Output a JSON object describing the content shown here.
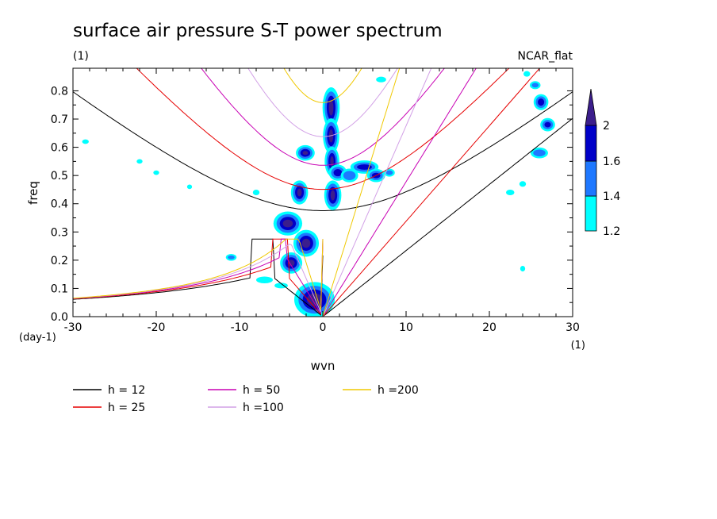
{
  "chart_data": {
    "type": "contour",
    "title": "surface air pressure S-T power spectrum",
    "subtitle": "(1)",
    "tag": "NCAR_flat",
    "xlabel": "wvn",
    "ylabel": "freq",
    "x_unit": "(1)",
    "y_unit": "(day-1)",
    "xlim": [
      -30,
      30
    ],
    "ylim": [
      0,
      0.88
    ],
    "x_ticks": [
      -30,
      -20,
      -10,
      0,
      10,
      20,
      30
    ],
    "x_tick_labels": [
      "-30",
      "-20",
      "-10",
      "0",
      "10",
      "20",
      "30"
    ],
    "y_ticks": [
      0,
      0.1,
      0.2,
      0.3,
      0.4,
      0.5,
      0.6,
      0.7,
      0.8
    ],
    "y_tick_labels": [
      "0.0",
      "0.1",
      "0.2",
      "0.3",
      "0.4",
      "0.5",
      "0.6",
      "0.7",
      "0.8"
    ],
    "colorbar": {
      "levels": [
        1.2,
        1.4,
        1.6,
        2
      ],
      "labels": [
        "1.2",
        "1.4",
        "1.6",
        "2"
      ],
      "colors": [
        "#00ffff",
        "#1e78ff",
        "#0000c8",
        "#3c1e8c"
      ]
    },
    "dispersion_curves": [
      {
        "h": 12,
        "label": "h = 12",
        "color": "#000000"
      },
      {
        "h": 25,
        "label": "h = 25",
        "color": "#e60000"
      },
      {
        "h": 50,
        "label": "h = 50",
        "color": "#c800b4"
      },
      {
        "h": 100,
        "label": "h =100",
        "color": "#d2a0e6"
      },
      {
        "h": 200,
        "label": "h =200",
        "color": "#f0c800"
      }
    ],
    "contour_blobs": [
      {
        "x": 1.0,
        "y": 0.74,
        "rx": 0.6,
        "ry": 0.06,
        "level": 4
      },
      {
        "x": 1.0,
        "y": 0.64,
        "rx": 0.55,
        "ry": 0.05,
        "level": 4
      },
      {
        "x": 1.1,
        "y": 0.55,
        "rx": 0.45,
        "ry": 0.04,
        "level": 4
      },
      {
        "x": 1.2,
        "y": 0.43,
        "rx": 0.6,
        "ry": 0.04,
        "level": 4
      },
      {
        "x": 1.8,
        "y": 0.51,
        "rx": 0.8,
        "ry": 0.02,
        "level": 3
      },
      {
        "x": -2.1,
        "y": 0.58,
        "rx": 0.7,
        "ry": 0.015,
        "level": 4
      },
      {
        "x": -2.8,
        "y": 0.44,
        "rx": 0.6,
        "ry": 0.03,
        "level": 4
      },
      {
        "x": -4.2,
        "y": 0.33,
        "rx": 1.3,
        "ry": 0.03,
        "level": 4
      },
      {
        "x": -2.0,
        "y": 0.26,
        "rx": 1.1,
        "ry": 0.035,
        "level": 4
      },
      {
        "x": -3.8,
        "y": 0.19,
        "rx": 0.9,
        "ry": 0.025,
        "level": 4
      },
      {
        "x": -1.0,
        "y": 0.06,
        "rx": 2.0,
        "ry": 0.05,
        "level": 4
      },
      {
        "x": 3.2,
        "y": 0.5,
        "rx": 0.9,
        "ry": 0.02,
        "level": 2
      },
      {
        "x": 5.0,
        "y": 0.53,
        "rx": 1.4,
        "ry": 0.015,
        "level": 3
      },
      {
        "x": 6.4,
        "y": 0.5,
        "rx": 0.8,
        "ry": 0.015,
        "level": 3
      },
      {
        "x": 8.0,
        "y": 0.51,
        "rx": 0.5,
        "ry": 0.01,
        "level": 2
      },
      {
        "x": 26.2,
        "y": 0.76,
        "rx": 0.6,
        "ry": 0.02,
        "level": 3
      },
      {
        "x": 27.0,
        "y": 0.68,
        "rx": 0.6,
        "ry": 0.015,
        "level": 3
      },
      {
        "x": 26.0,
        "y": 0.58,
        "rx": 0.9,
        "ry": 0.015,
        "level": 2
      },
      {
        "x": 25.5,
        "y": 0.82,
        "rx": 0.5,
        "ry": 0.01,
        "level": 2
      },
      {
        "x": 24.0,
        "y": 0.17,
        "rx": 0.3,
        "ry": 0.01,
        "level": 1
      },
      {
        "x": 22.5,
        "y": 0.44,
        "rx": 0.5,
        "ry": 0.01,
        "level": 1
      },
      {
        "x": -11.0,
        "y": 0.21,
        "rx": 0.5,
        "ry": 0.008,
        "level": 2
      },
      {
        "x": -28.5,
        "y": 0.62,
        "rx": 0.4,
        "ry": 0.008,
        "level": 1
      },
      {
        "x": -22.0,
        "y": 0.55,
        "rx": 0.35,
        "ry": 0.008,
        "level": 1
      },
      {
        "x": -20.0,
        "y": 0.51,
        "rx": 0.35,
        "ry": 0.008,
        "level": 1
      },
      {
        "x": -7.0,
        "y": 0.13,
        "rx": 1.0,
        "ry": 0.012,
        "level": 1
      },
      {
        "x": -5.0,
        "y": 0.11,
        "rx": 0.8,
        "ry": 0.01,
        "level": 1
      },
      {
        "x": -8.0,
        "y": 0.44,
        "rx": 0.4,
        "ry": 0.01,
        "level": 1
      },
      {
        "x": -16.0,
        "y": 0.46,
        "rx": 0.3,
        "ry": 0.008,
        "level": 1
      },
      {
        "x": 7.0,
        "y": 0.84,
        "rx": 0.6,
        "ry": 0.01,
        "level": 1
      },
      {
        "x": 24.5,
        "y": 0.86,
        "rx": 0.4,
        "ry": 0.01,
        "level": 1
      },
      {
        "x": 24.0,
        "y": 0.47,
        "rx": 0.4,
        "ry": 0.01,
        "level": 1
      }
    ]
  }
}
